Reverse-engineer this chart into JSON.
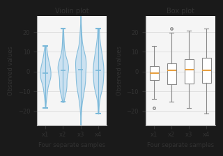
{
  "title_violin": "Violin plot",
  "title_box": "Box plot",
  "xlabel": "Four separate samples",
  "ylabel": "Observed values",
  "categories": [
    "x1",
    "x2",
    "x3",
    "x4"
  ],
  "ylim": [
    -27,
    28
  ],
  "outer_bg": "#1a1a1a",
  "inner_bg": "#f5f5f5",
  "violin_face_color": "#c8dff0",
  "violin_edge_color": "#7ab8d9",
  "box_face_color": "#ffffff",
  "box_edge_color": "#888888",
  "median_color": "#e8a040",
  "whisker_color": "#888888",
  "grid_color": "#dddddd",
  "seed": 42,
  "n_samples": 100,
  "scales": [
    7,
    8,
    9,
    10
  ],
  "title_fontsize": 7,
  "label_fontsize": 6,
  "tick_fontsize": 6
}
